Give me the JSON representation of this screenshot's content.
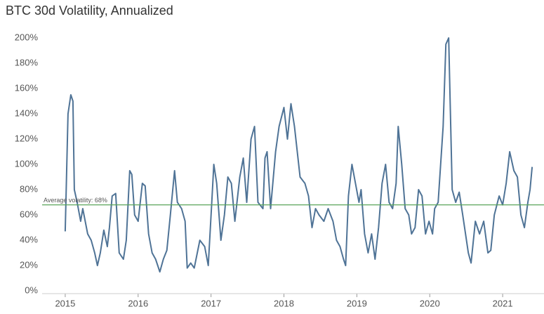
{
  "chart_data": {
    "type": "line",
    "title": "BTC 30d Volatility, Annualized",
    "xlim": [
      2014.683,
      2021.567
    ],
    "xticks": [
      2015,
      2016,
      2017,
      2018,
      2019,
      2020,
      2021
    ],
    "ylim": [
      0,
      200
    ],
    "yticks": [
      {
        "value": 0,
        "label": "0%"
      },
      {
        "value": 20,
        "label": "20%"
      },
      {
        "value": 40,
        "label": "40%"
      },
      {
        "value": 60,
        "label": "60%"
      },
      {
        "value": 80,
        "label": "80%"
      },
      {
        "value": 100,
        "label": "100%"
      },
      {
        "value": 120,
        "label": "120%"
      },
      {
        "value": 140,
        "label": "140%"
      },
      {
        "value": 160,
        "label": "160%"
      },
      {
        "value": 180,
        "label": "180%"
      },
      {
        "value": 200,
        "label": "200%"
      }
    ],
    "grid": false,
    "reference_line": {
      "value": 68,
      "label": "Average volatility: 68%",
      "color": "#5aa55a"
    },
    "series": [
      {
        "color": "#4f7396",
        "x": [
          2015.0,
          2015.038,
          2015.077,
          2015.106,
          2015.125,
          2015.163,
          2015.212,
          2015.24,
          2015.308,
          2015.356,
          2015.404,
          2015.442,
          2015.481,
          2015.529,
          2015.577,
          2015.606,
          2015.644,
          2015.692,
          2015.74,
          2015.798,
          2015.837,
          2015.885,
          2015.913,
          2015.952,
          2016.0,
          2016.058,
          2016.096,
          2016.144,
          2016.192,
          2016.24,
          2016.298,
          2016.346,
          2016.394,
          2016.442,
          2016.5,
          2016.538,
          2016.596,
          2016.644,
          2016.673,
          2016.721,
          2016.769,
          2016.846,
          2016.913,
          2016.962,
          2017.01,
          2017.038,
          2017.077,
          2017.135,
          2017.183,
          2017.231,
          2017.279,
          2017.327,
          2017.394,
          2017.442,
          2017.49,
          2017.548,
          2017.596,
          2017.644,
          2017.712,
          2017.74,
          2017.769,
          2017.817,
          2017.885,
          2017.933,
          2018.0,
          2018.048,
          2018.096,
          2018.144,
          2018.221,
          2018.288,
          2018.337,
          2018.385,
          2018.433,
          2018.481,
          2018.548,
          2018.606,
          2018.673,
          2018.721,
          2018.769,
          2018.817,
          2018.846,
          2018.885,
          2018.933,
          2018.981,
          2019.029,
          2019.058,
          2019.106,
          2019.154,
          2019.202,
          2019.25,
          2019.298,
          2019.346,
          2019.394,
          2019.442,
          2019.49,
          2019.538,
          2019.567,
          2019.615,
          2019.663,
          2019.712,
          2019.75,
          2019.798,
          2019.846,
          2019.894,
          2019.942,
          2019.99,
          2020.038,
          2020.067,
          2020.115,
          2020.183,
          2020.221,
          2020.26,
          2020.308,
          2020.356,
          2020.404,
          2020.452,
          2020.529,
          2020.567,
          2020.625,
          2020.683,
          2020.74,
          2020.798,
          2020.837,
          2020.885,
          2020.952,
          2021.0,
          2021.048,
          2021.096,
          2021.154,
          2021.202,
          2021.25,
          2021.298,
          2021.346,
          2021.375,
          2021.404
        ],
        "values": [
          47,
          140,
          155,
          150,
          80,
          70,
          55,
          65,
          45,
          40,
          30,
          20,
          30,
          48,
          35,
          50,
          75,
          77,
          30,
          25,
          40,
          95,
          92,
          60,
          55,
          85,
          83,
          45,
          30,
          25,
          15,
          25,
          32,
          60,
          95,
          70,
          65,
          55,
          18,
          22,
          18,
          40,
          35,
          20,
          70,
          100,
          85,
          40,
          60,
          90,
          85,
          55,
          90,
          105,
          70,
          120,
          130,
          70,
          65,
          105,
          110,
          65,
          110,
          130,
          145,
          120,
          148,
          130,
          90,
          85,
          75,
          50,
          65,
          60,
          55,
          65,
          55,
          40,
          35,
          25,
          20,
          75,
          100,
          85,
          70,
          80,
          45,
          30,
          45,
          25,
          50,
          85,
          100,
          70,
          65,
          85,
          130,
          100,
          65,
          60,
          45,
          50,
          80,
          75,
          45,
          55,
          45,
          65,
          70,
          130,
          195,
          200,
          80,
          70,
          78,
          60,
          30,
          22,
          55,
          45,
          55,
          30,
          32,
          60,
          75,
          68,
          85,
          110,
          95,
          90,
          60,
          50,
          70,
          80,
          98
        ]
      }
    ]
  }
}
